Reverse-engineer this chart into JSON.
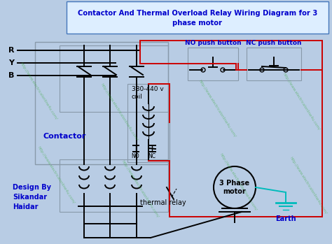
{
  "title": "Contactor And Thermal Overload Relay Wiring Diagram for 3\nphase motor",
  "title_color": "#0000cc",
  "bg_color": "#b8cce4",
  "label_R": "R",
  "label_Y": "Y",
  "label_B": "B",
  "label_contactor": "Contactor",
  "label_coil": "380-440 v\ncoil",
  "label_NO": "NO",
  "label_NC": "NC",
  "label_NO_btn": "NO push button",
  "label_NC_btn": "NC push button",
  "label_thermal": "thermal relay",
  "label_motor": "3 Phase\nmotor",
  "label_earth": "Earth",
  "label_design": "Design By\nSikandar\nHaidar",
  "wire_black": "#000000",
  "wire_red": "#cc0000",
  "wire_cyan": "#00bbbb",
  "text_blue": "#0000cc",
  "text_black": "#000000",
  "watermark": "http://www.electricalonline4u.com/"
}
